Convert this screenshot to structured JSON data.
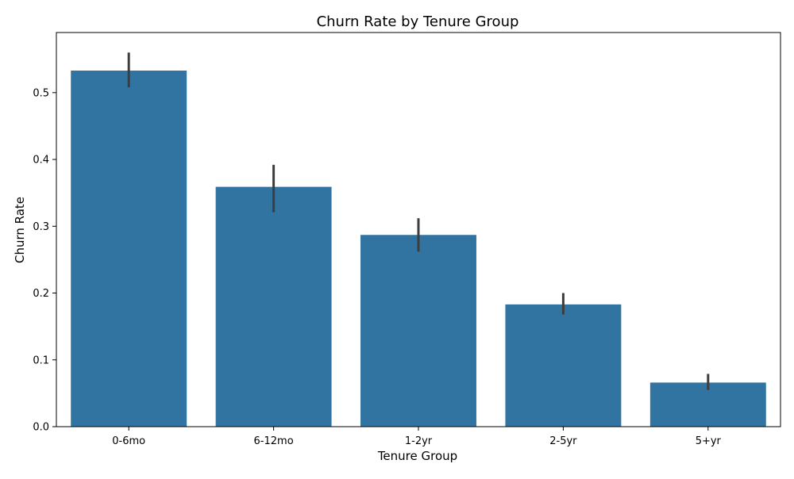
{
  "chart_data": {
    "type": "bar",
    "title": "Churn Rate by Tenure Group",
    "xlabel": "Tenure Group",
    "ylabel": "Churn Rate",
    "categories": [
      "0-6mo",
      "6-12mo",
      "1-2yr",
      "2-5yr",
      "5+yr"
    ],
    "values": [
      0.533,
      0.359,
      0.287,
      0.183,
      0.066
    ],
    "error_low": [
      0.508,
      0.321,
      0.262,
      0.168,
      0.055
    ],
    "error_high": [
      0.56,
      0.392,
      0.312,
      0.2,
      0.079
    ],
    "ylim": [
      0,
      0.59
    ],
    "yticks": [
      0.0,
      0.1,
      0.2,
      0.3,
      0.4,
      0.5
    ],
    "ytick_labels": [
      "0.0",
      "0.1",
      "0.2",
      "0.3",
      "0.4",
      "0.5"
    ],
    "grid": false,
    "colors": {
      "bar": "#3274a1",
      "error_bar": "#3d3d3d",
      "axis": "#000000"
    }
  }
}
